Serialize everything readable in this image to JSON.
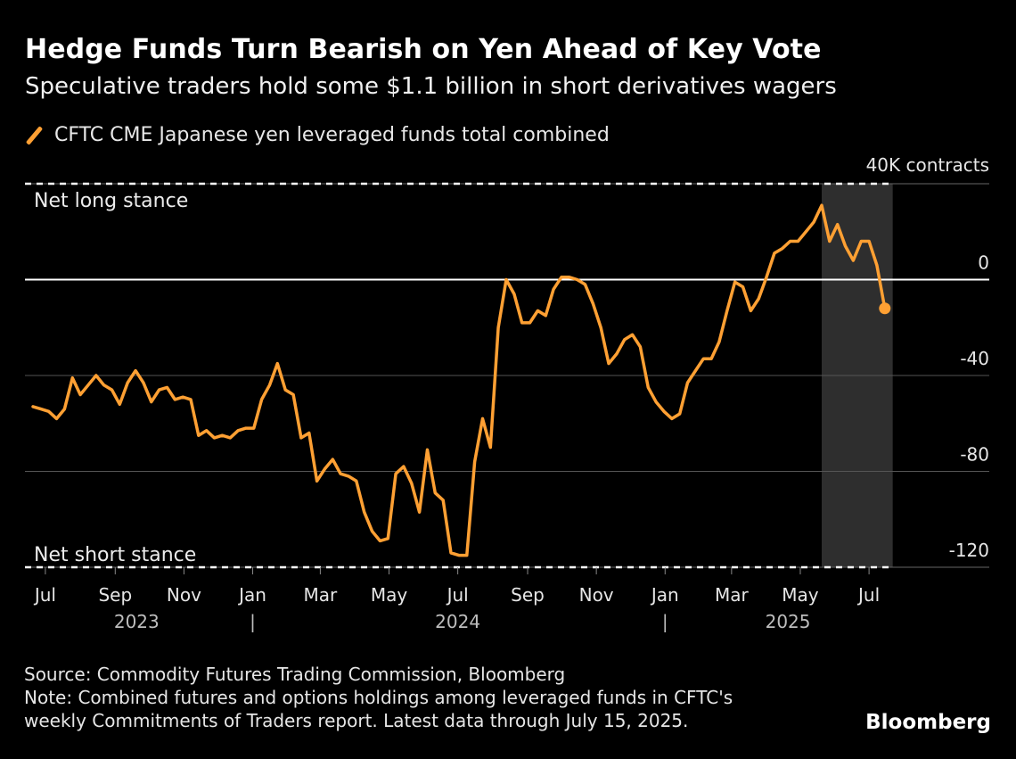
{
  "title": "Hedge Funds Turn Bearish on Yen Ahead of Key Vote",
  "subtitle": "Speculative traders hold some $1.1 billion in short derivatives wagers",
  "legend_label": "CFTC CME Japanese yen leveraged funds total combined",
  "source": "Source: Commodity Futures Trading Commission, Bloomberg",
  "note_line1": "Note: Combined futures and options holdings among leveraged funds in CFTC's",
  "note_line2": "weekly Commitments of Traders report. Latest data through July 15, 2025.",
  "brand": "Bloomberg",
  "colors": {
    "series": "#ffa033",
    "background": "#000000",
    "grid": "#555555",
    "highlight": "#2e2e2e",
    "text": "#ffffff"
  },
  "chart_data": {
    "type": "line",
    "series": [
      {
        "name": "CFTC CME Japanese yen leveraged funds total combined",
        "values": [
          -53,
          -54,
          -55,
          -58,
          -54,
          -41,
          -48,
          -44,
          -40,
          -44,
          -46,
          -52,
          -43,
          -38,
          -43,
          -51,
          -46,
          -45,
          -50,
          -49,
          -50,
          -65,
          -63,
          -66,
          -65,
          -66,
          -63,
          -62,
          -62,
          -50,
          -44,
          -35,
          -46,
          -48,
          -66,
          -64,
          -84,
          -79,
          -75,
          -81,
          -82,
          -84,
          -97,
          -105,
          -109,
          -108,
          -81,
          -78,
          -85,
          -97,
          -71,
          -89,
          -92,
          -114,
          -115,
          -115,
          -76,
          -58,
          -70,
          -20,
          0,
          -6,
          -18,
          -18,
          -13,
          -15,
          -4,
          1,
          1,
          0,
          -2,
          -10,
          -20,
          -35,
          -31,
          -25,
          -23,
          -28,
          -45,
          -51,
          -55,
          -58,
          -56,
          -43,
          -38,
          -33,
          -33,
          -26,
          -13,
          -1,
          -3,
          -13,
          -8,
          1,
          11,
          13,
          16,
          16,
          20,
          24,
          31,
          16,
          23,
          14,
          8,
          16,
          16,
          6,
          -12
        ]
      }
    ],
    "start_date": "2023-06-20",
    "interval": "weekly",
    "x_ticks": [
      "Jul",
      "Sep",
      "Nov",
      "Jan",
      "Mar",
      "May",
      "Jul",
      "Sep",
      "Nov",
      "Jan",
      "Mar",
      "May",
      "Jul"
    ],
    "year_labels": [
      "2023",
      "2024",
      "2025"
    ],
    "y_ticks": [
      "40K contracts",
      "0",
      "-40",
      "-80",
      "-120"
    ],
    "ylim": [
      -120,
      40
    ],
    "y_unit": "K contracts",
    "reference_lines": [
      {
        "label": "Net long stance",
        "value": 40
      },
      {
        "label": "Net short stance",
        "value": -120
      }
    ],
    "highlight_range": [
      "2025-05-20",
      "2025-07-22"
    ],
    "grid": true,
    "legend_position": "top-left"
  }
}
